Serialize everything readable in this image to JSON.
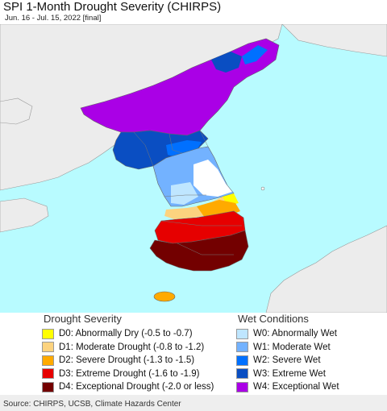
{
  "header": {
    "title": "SPI 1-Month Drought Severity (CHIRPS)",
    "subtitle": "Jun. 16 - Jul. 15, 2022 [final]"
  },
  "colors": {
    "ocean": "#b8fbff",
    "land_outside": "#ececec",
    "normal": "#ffffff",
    "border_line": "#888888"
  },
  "legend": {
    "drought_title": "Drought Severity",
    "wet_title": "Wet Conditions",
    "drought": [
      {
        "label": "D0: Abnormally Dry (-0.5 to -0.7)",
        "color": "#ffff00"
      },
      {
        "label": "D1: Moderate Drought (-0.8 to -1.2)",
        "color": "#fcd37f"
      },
      {
        "label": "D2: Severe Drought (-1.3 to -1.5)",
        "color": "#ffaa00"
      },
      {
        "label": "D3: Extreme Drought (-1.6 to -1.9)",
        "color": "#e60000"
      },
      {
        "label": "D4: Exceptional Drought (-2.0 or less)",
        "color": "#730000"
      }
    ],
    "wet": [
      {
        "label": "W0: Abnormally Wet",
        "color": "#bfe6ff"
      },
      {
        "label": "W1: Moderate Wet",
        "color": "#73b2ff"
      },
      {
        "label": "W2: Severe Wet",
        "color": "#0070ff"
      },
      {
        "label": "W3: Extreme Wet",
        "color": "#0a4ec2"
      },
      {
        "label": "W4: Exceptional Wet",
        "color": "#aa00e6"
      }
    ]
  },
  "source": "Source: CHIRPS, UCSB, Climate Hazards Center"
}
